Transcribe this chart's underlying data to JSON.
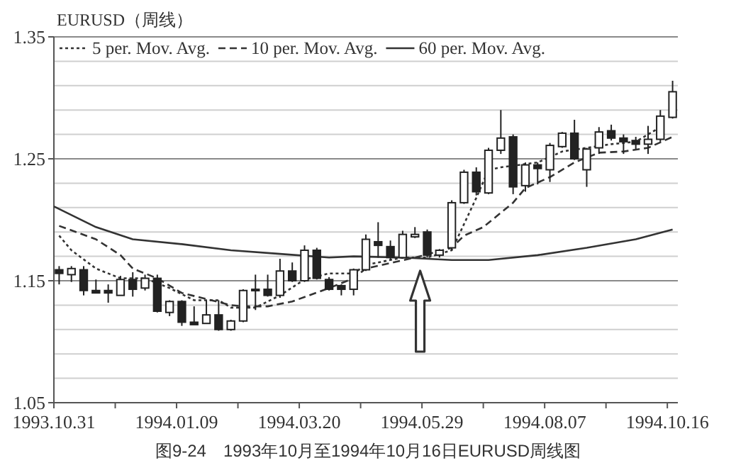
{
  "chart_data": {
    "type": "candlestick",
    "title": "EURUSD（周线）",
    "x": [
      "1993-11-03",
      "1993-11-10",
      "1993-11-17",
      "1993-11-24",
      "1993-12-01",
      "1993-12-08",
      "1993-12-15",
      "1993-12-22",
      "1993-12-29",
      "1994-01-05",
      "1994-01-12",
      "1994-01-19",
      "1994-01-26",
      "1994-02-02",
      "1994-02-09",
      "1994-02-16",
      "1994-02-23",
      "1994-03-02",
      "1994-03-09",
      "1994-03-16",
      "1994-03-23",
      "1994-03-30",
      "1994-04-06",
      "1994-04-13",
      "1994-04-20",
      "1994-04-27",
      "1994-05-04",
      "1994-05-11",
      "1994-05-18",
      "1994-05-25",
      "1994-06-01",
      "1994-06-08",
      "1994-06-15",
      "1994-06-22",
      "1994-06-29",
      "1994-07-06",
      "1994-07-13",
      "1994-07-20",
      "1994-07-27",
      "1994-08-03",
      "1994-08-10",
      "1994-08-17",
      "1994-08-24",
      "1994-08-31",
      "1994-09-07",
      "1994-09-14",
      "1994-09-21",
      "1994-09-28",
      "1994-10-05",
      "1994-10-12",
      "1994-10-19"
    ],
    "ohlc": [
      [
        1.159,
        1.162,
        1.147,
        1.156
      ],
      [
        1.155,
        1.162,
        1.149,
        1.16
      ],
      [
        1.159,
        1.162,
        1.138,
        1.142
      ],
      [
        1.142,
        1.151,
        1.14,
        1.14
      ],
      [
        1.142,
        1.147,
        1.132,
        1.14
      ],
      [
        1.138,
        1.154,
        1.138,
        1.151
      ],
      [
        1.151,
        1.157,
        1.137,
        1.143
      ],
      [
        1.144,
        1.155,
        1.142,
        1.152
      ],
      [
        1.152,
        1.155,
        1.124,
        1.125
      ],
      [
        1.124,
        1.134,
        1.121,
        1.133
      ],
      [
        1.133,
        1.134,
        1.113,
        1.116
      ],
      [
        1.116,
        1.129,
        1.114,
        1.114
      ],
      [
        1.115,
        1.134,
        1.115,
        1.122
      ],
      [
        1.122,
        1.134,
        1.109,
        1.11
      ],
      [
        1.11,
        1.118,
        1.109,
        1.117
      ],
      [
        1.117,
        1.143,
        1.116,
        1.142
      ],
      [
        1.142,
        1.155,
        1.126,
        1.143
      ],
      [
        1.143,
        1.155,
        1.137,
        1.138
      ],
      [
        1.138,
        1.168,
        1.136,
        1.158
      ],
      [
        1.158,
        1.165,
        1.149,
        1.15
      ],
      [
        1.15,
        1.179,
        1.149,
        1.175
      ],
      [
        1.175,
        1.177,
        1.151,
        1.152
      ],
      [
        1.151,
        1.153,
        1.142,
        1.143
      ],
      [
        1.146,
        1.147,
        1.138,
        1.143
      ],
      [
        1.143,
        1.16,
        1.138,
        1.159
      ],
      [
        1.159,
        1.188,
        1.158,
        1.184
      ],
      [
        1.182,
        1.198,
        1.169,
        1.179
      ],
      [
        1.178,
        1.183,
        1.167,
        1.169
      ],
      [
        1.169,
        1.191,
        1.168,
        1.188
      ],
      [
        1.186,
        1.194,
        1.185,
        1.188
      ],
      [
        1.19,
        1.192,
        1.169,
        1.171
      ],
      [
        1.171,
        1.176,
        1.169,
        1.175
      ],
      [
        1.177,
        1.216,
        1.175,
        1.214
      ],
      [
        1.214,
        1.241,
        1.213,
        1.239
      ],
      [
        1.239,
        1.243,
        1.22,
        1.223
      ],
      [
        1.222,
        1.259,
        1.221,
        1.257
      ],
      [
        1.257,
        1.29,
        1.254,
        1.267
      ],
      [
        1.268,
        1.27,
        1.221,
        1.227
      ],
      [
        1.228,
        1.247,
        1.223,
        1.245
      ],
      [
        1.245,
        1.247,
        1.229,
        1.242
      ],
      [
        1.241,
        1.263,
        1.231,
        1.261
      ],
      [
        1.26,
        1.272,
        1.259,
        1.271
      ],
      [
        1.271,
        1.282,
        1.249,
        1.25
      ],
      [
        1.241,
        1.259,
        1.227,
        1.258
      ],
      [
        1.259,
        1.276,
        1.254,
        1.272
      ],
      [
        1.273,
        1.278,
        1.265,
        1.267
      ],
      [
        1.267,
        1.27,
        1.254,
        1.264
      ],
      [
        1.265,
        1.268,
        1.258,
        1.262
      ],
      [
        1.262,
        1.277,
        1.254,
        1.266
      ],
      [
        1.266,
        1.29,
        1.264,
        1.285
      ],
      [
        1.284,
        1.314,
        1.283,
        1.305
      ]
    ],
    "series": [
      {
        "name": "5 per. Mov. Avg.",
        "type": "line",
        "line_style": "dotted",
        "color": "#333333",
        "x": [
          "1993-11-03",
          "1993-11-10",
          "1993-11-24",
          "1993-12-08",
          "1993-12-22",
          "1994-01-05",
          "1994-01-19",
          "1994-02-02",
          "1994-02-09",
          "1994-02-23",
          "1994-03-09",
          "1994-03-23",
          "1994-04-06",
          "1994-04-20",
          "1994-04-27",
          "1994-05-18",
          "1994-06-01",
          "1994-06-15",
          "1994-06-29",
          "1994-07-06",
          "1994-07-13",
          "1994-08-03",
          "1994-08-17",
          "1994-08-31",
          "1994-09-14",
          "1994-09-28",
          "1994-10-12"
        ],
        "values": [
          1.187,
          1.175,
          1.16,
          1.152,
          1.152,
          1.144,
          1.134,
          1.134,
          1.128,
          1.128,
          1.138,
          1.151,
          1.156,
          1.156,
          1.163,
          1.169,
          1.169,
          1.175,
          1.218,
          1.241,
          1.243,
          1.247,
          1.256,
          1.259,
          1.262,
          1.264,
          1.276
        ]
      },
      {
        "name": "10 per. Mov. Avg.",
        "type": "line",
        "line_style": "dashed",
        "color": "#333333",
        "x": [
          "1993-11-03",
          "1993-11-24",
          "1993-12-08",
          "1993-12-15",
          "1993-12-29",
          "1994-01-12",
          "1994-01-26",
          "1994-02-09",
          "1994-02-16",
          "1994-03-02",
          "1994-03-16",
          "1994-04-06",
          "1994-04-20",
          "1994-04-27",
          "1994-05-25",
          "1994-06-15",
          "1994-06-22",
          "1994-07-03",
          "1994-07-20",
          "1994-07-27",
          "1994-08-10",
          "1994-08-24",
          "1994-09-07",
          "1994-09-21",
          "1994-10-05",
          "1994-10-19"
        ],
        "values": [
          1.195,
          1.184,
          1.171,
          1.16,
          1.152,
          1.14,
          1.135,
          1.13,
          1.129,
          1.129,
          1.133,
          1.144,
          1.152,
          1.16,
          1.169,
          1.177,
          1.187,
          1.194,
          1.214,
          1.226,
          1.235,
          1.247,
          1.255,
          1.256,
          1.259,
          1.268
        ]
      },
      {
        "name": "60 per. Mov. Avg.",
        "type": "line",
        "line_style": "solid",
        "color": "#333333",
        "x": [
          "1993-10-31",
          "1993-11-24",
          "1993-12-15",
          "1994-01-12",
          "1994-02-09",
          "1994-03-09",
          "1994-04-06",
          "1994-04-20",
          "1994-05-18",
          "1994-06-15",
          "1994-07-06",
          "1994-08-03",
          "1994-08-31",
          "1994-09-28",
          "1994-10-19"
        ],
        "values": [
          1.211,
          1.194,
          1.184,
          1.18,
          1.175,
          1.172,
          1.169,
          1.17,
          1.169,
          1.167,
          1.167,
          1.171,
          1.177,
          1.184,
          1.192
        ]
      }
    ],
    "xlim": [
      "1993-10-31",
      "1994-10-22"
    ],
    "xticks": [
      {
        "value": "1993-10-31",
        "label": "1993.10.31"
      },
      {
        "value": "1993-12-05",
        "label": null
      },
      {
        "value": "1994-01-09",
        "label": "1994.01.09"
      },
      {
        "value": "1994-02-13",
        "label": null
      },
      {
        "value": "1994-03-20",
        "label": "1994.03.20"
      },
      {
        "value": "1994-04-24",
        "label": null
      },
      {
        "value": "1994-05-29",
        "label": "1994.05.29"
      },
      {
        "value": "1994-07-03",
        "label": null
      },
      {
        "value": "1994-08-07",
        "label": "1994.08.07"
      },
      {
        "value": "1994-09-11",
        "label": null
      },
      {
        "value": "1994-10-16",
        "label": "1994.10.16"
      }
    ],
    "ylim": [
      1.05,
      1.35
    ],
    "yticks": [
      1.05,
      {
        "value": 1.07,
        "label": null
      },
      {
        "value": 1.09,
        "label": null
      },
      {
        "value": 1.11,
        "label": null
      },
      {
        "value": 1.13,
        "label": null
      },
      1.15,
      {
        "value": 1.17,
        "label": null
      },
      {
        "value": 1.19,
        "label": null
      },
      {
        "value": 1.21,
        "label": null
      },
      {
        "value": 1.23,
        "label": null
      },
      1.25,
      {
        "value": 1.27,
        "label": null
      },
      {
        "value": 1.29,
        "label": null
      },
      {
        "value": 1.31,
        "label": null
      },
      {
        "value": 1.33,
        "label": null
      },
      1.35
    ],
    "grid": "y",
    "legend": "top",
    "marker": "none",
    "annotations": [
      "图9-24　1993年10月至1994年10月16日EURUSD周线图"
    ]
  }
}
